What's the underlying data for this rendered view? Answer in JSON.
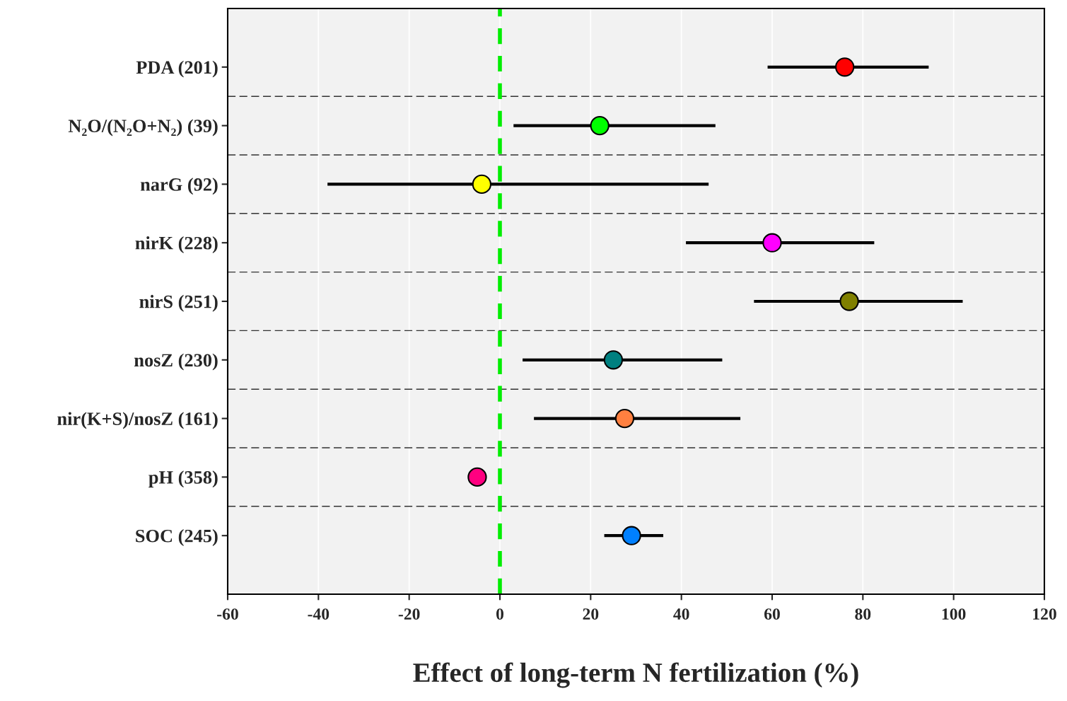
{
  "chart_data": {
    "type": "scatter",
    "orientation": "horizontal",
    "xlabel": "Effect of long-term N fertilization (%)",
    "categories": [
      "PDA (201)",
      "N₂O/(N₂O+N₂) (39)",
      "narG (92)",
      "nirK (228)",
      "nirS (251)",
      "nosZ (230)",
      "nir(K+S)/nosZ (161)",
      "pH (358)",
      "SOC (245)"
    ],
    "values": [
      76,
      22,
      -4,
      60,
      77,
      25,
      27.5,
      -5,
      29
    ],
    "errors": [
      [
        59,
        94.5
      ],
      [
        3,
        47.5
      ],
      [
        -38,
        46
      ],
      [
        41,
        82.5
      ],
      [
        56,
        102
      ],
      [
        5,
        49
      ],
      [
        7.5,
        53
      ],
      null,
      [
        23,
        36
      ]
    ],
    "colors": [
      "#ff0000",
      "#00ff00",
      "#ffff00",
      "#ff00ff",
      "#808000",
      "#008080",
      "#ff8040",
      "#ff0080",
      "#0080ff"
    ],
    "xlim": [
      -60,
      120
    ],
    "xticks": [
      -60,
      -40,
      -20,
      0,
      20,
      40,
      60,
      80,
      100,
      120
    ],
    "grid": "x",
    "marker": "circle",
    "ref_lines": [
      {
        "axis": "x",
        "value": 0,
        "color": "#00ee00",
        "line_style": "dashed"
      }
    ]
  }
}
